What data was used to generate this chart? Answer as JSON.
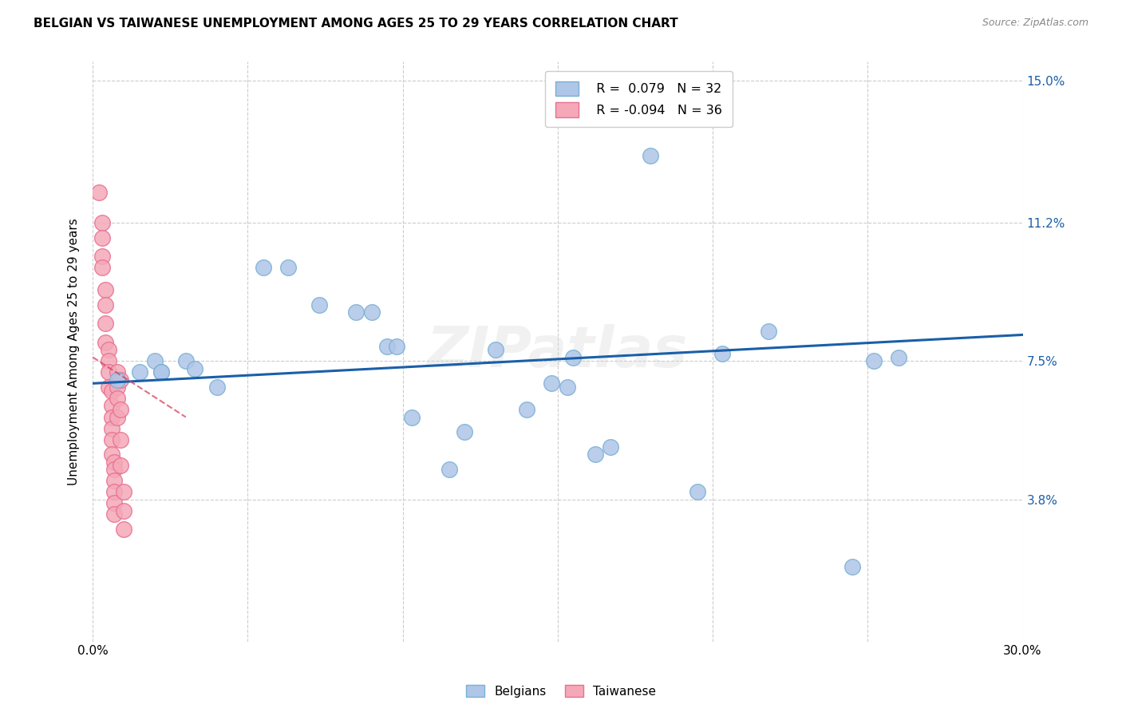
{
  "title": "BELGIAN VS TAIWANESE UNEMPLOYMENT AMONG AGES 25 TO 29 YEARS CORRELATION CHART",
  "source": "Source: ZipAtlas.com",
  "ylabel": "Unemployment Among Ages 25 to 29 years",
  "xlabel": "",
  "xlim": [
    0.0,
    0.3
  ],
  "ylim": [
    0.0,
    0.155
  ],
  "xticks": [
    0.0,
    0.05,
    0.1,
    0.15,
    0.2,
    0.25,
    0.3
  ],
  "xticklabels": [
    "0.0%",
    "",
    "",
    "",
    "",
    "",
    "30.0%"
  ],
  "ytick_vals": [
    0.038,
    0.075,
    0.112,
    0.15
  ],
  "ytick_labels": [
    "3.8%",
    "7.5%",
    "11.2%",
    "15.0%"
  ],
  "legend_r1": "R =  0.079",
  "legend_n1": "N = 32",
  "legend_r2": "R = -0.094",
  "legend_n2": "N = 36",
  "belgian_color": "#aec6e8",
  "taiwanese_color": "#f4a8b8",
  "belgian_edge": "#7ab0d4",
  "taiwanese_edge": "#e87090",
  "trendline_belgian_color": "#1a5fa8",
  "trendline_taiwanese_color": "#d44060",
  "belgians_x": [
    0.008,
    0.015,
    0.02,
    0.022,
    0.022,
    0.03,
    0.033,
    0.04,
    0.055,
    0.063,
    0.073,
    0.085,
    0.09,
    0.095,
    0.098,
    0.103,
    0.115,
    0.12,
    0.13,
    0.14,
    0.148,
    0.153,
    0.155,
    0.162,
    0.167,
    0.18,
    0.195,
    0.203,
    0.218,
    0.245,
    0.252,
    0.26
  ],
  "belgians_y": [
    0.07,
    0.072,
    0.075,
    0.072,
    0.072,
    0.075,
    0.073,
    0.068,
    0.1,
    0.1,
    0.09,
    0.088,
    0.088,
    0.079,
    0.079,
    0.06,
    0.046,
    0.056,
    0.078,
    0.062,
    0.069,
    0.068,
    0.076,
    0.05,
    0.052,
    0.13,
    0.04,
    0.077,
    0.083,
    0.02,
    0.075,
    0.076
  ],
  "taiwanese_x": [
    0.002,
    0.003,
    0.003,
    0.003,
    0.003,
    0.004,
    0.004,
    0.004,
    0.004,
    0.005,
    0.005,
    0.005,
    0.005,
    0.006,
    0.006,
    0.006,
    0.006,
    0.006,
    0.006,
    0.007,
    0.007,
    0.007,
    0.007,
    0.007,
    0.007,
    0.008,
    0.008,
    0.008,
    0.008,
    0.009,
    0.009,
    0.009,
    0.009,
    0.01,
    0.01,
    0.01
  ],
  "taiwanese_y": [
    0.12,
    0.112,
    0.108,
    0.103,
    0.1,
    0.094,
    0.09,
    0.085,
    0.08,
    0.078,
    0.075,
    0.072,
    0.068,
    0.067,
    0.063,
    0.06,
    0.057,
    0.054,
    0.05,
    0.048,
    0.046,
    0.043,
    0.04,
    0.037,
    0.034,
    0.072,
    0.068,
    0.065,
    0.06,
    0.07,
    0.062,
    0.054,
    0.047,
    0.04,
    0.035,
    0.03
  ],
  "watermark": "ZIPatlas",
  "bg_color": "#ffffff",
  "grid_color": "#cccccc",
  "belgian_trend_x0": 0.0,
  "belgian_trend_x1": 0.3,
  "belgian_trend_y0": 0.069,
  "belgian_trend_y1": 0.082,
  "taiwanese_trend_x0": 0.0,
  "taiwanese_trend_x1": 0.03,
  "taiwanese_trend_y0": 0.076,
  "taiwanese_trend_y1": 0.06
}
